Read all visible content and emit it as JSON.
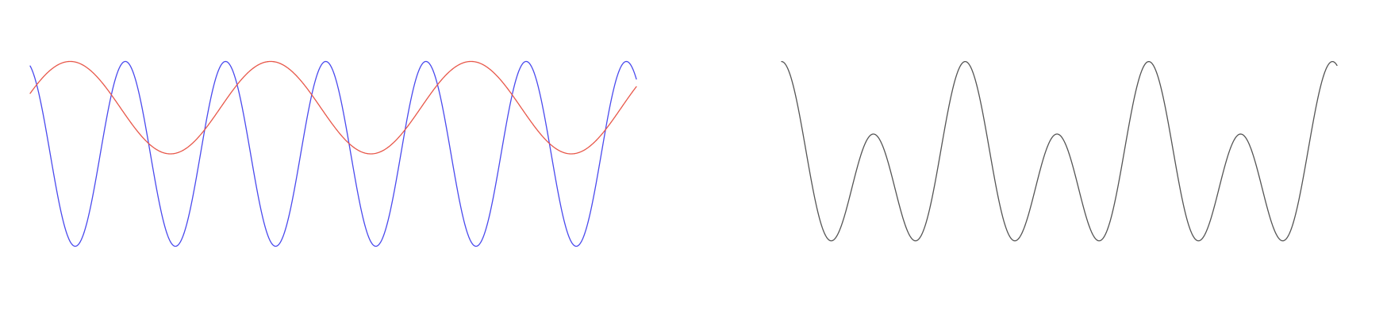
{
  "chart_data": [
    {
      "type": "line",
      "title": "",
      "xlabel": "",
      "ylabel": "",
      "grid": false,
      "axes_visible": false,
      "xlim": [
        0,
        6.05
      ],
      "ylim": [
        -1.15,
        1.15
      ],
      "series": [
        {
          "color": "#4a4aee",
          "function": "cos",
          "amplitude": 1.0,
          "cycles_per_unit": 1.0,
          "phase_cycles": 0.05,
          "offset": 0.0
        },
        {
          "color": "#e8584a",
          "function": "cos",
          "amplitude": 0.5,
          "cycles_per_unit": 0.5,
          "phase_cycles": -0.2,
          "offset": 0.5
        }
      ]
    },
    {
      "type": "line",
      "title": "",
      "xlabel": "",
      "ylabel": "",
      "grid": false,
      "axes_visible": false,
      "xlim": [
        0,
        6.05
      ],
      "ylim": [
        -1.25,
        1.25
      ],
      "series": [
        {
          "color": "#555555",
          "function": "sum",
          "terms": [
            {
              "function": "cos",
              "amplitude": 0.66,
              "cycles_per_unit": 1.0,
              "phase_cycles": 0.0
            },
            {
              "function": "cos",
              "amplitude": 0.34,
              "cycles_per_unit": 0.5,
              "phase_cycles": 0.0
            }
          ],
          "offset": 0.0
        }
      ]
    }
  ]
}
